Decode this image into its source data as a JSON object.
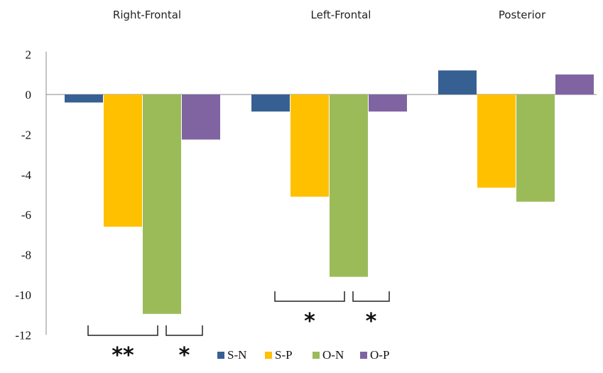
{
  "chart_data": {
    "type": "bar",
    "categories": [
      "Right-Frontal",
      "Left-Frontal",
      "Posterior"
    ],
    "series": [
      {
        "name": "S-N",
        "color": "#376092",
        "values": [
          -0.4,
          -0.85,
          1.2
        ]
      },
      {
        "name": "S-P",
        "color": "#FFC000",
        "values": [
          -6.6,
          -5.1,
          -4.65
        ]
      },
      {
        "name": "O-N",
        "color": "#9BBB59",
        "values": [
          -10.95,
          -9.1,
          -5.35
        ]
      },
      {
        "name": "O-P",
        "color": "#8064A2",
        "values": [
          -2.25,
          -0.85,
          1.0
        ]
      }
    ],
    "ylim": [
      -12,
      2
    ],
    "yticks": [
      "2",
      "0",
      "-2",
      "-4",
      "-6",
      "-8",
      "-10",
      "-12"
    ],
    "legend_position": "bottom",
    "significance": [
      {
        "category": "Right-Frontal",
        "from_series": "S-N",
        "to_series": "O-N",
        "label": "**"
      },
      {
        "category": "Right-Frontal",
        "from_series": "O-N",
        "to_series": "O-P",
        "label": "*"
      },
      {
        "category": "Left-Frontal",
        "from_series": "S-N",
        "to_series": "O-N",
        "label": "*"
      },
      {
        "category": "Left-Frontal",
        "from_series": "O-N",
        "to_series": "O-P",
        "label": "*"
      }
    ]
  }
}
